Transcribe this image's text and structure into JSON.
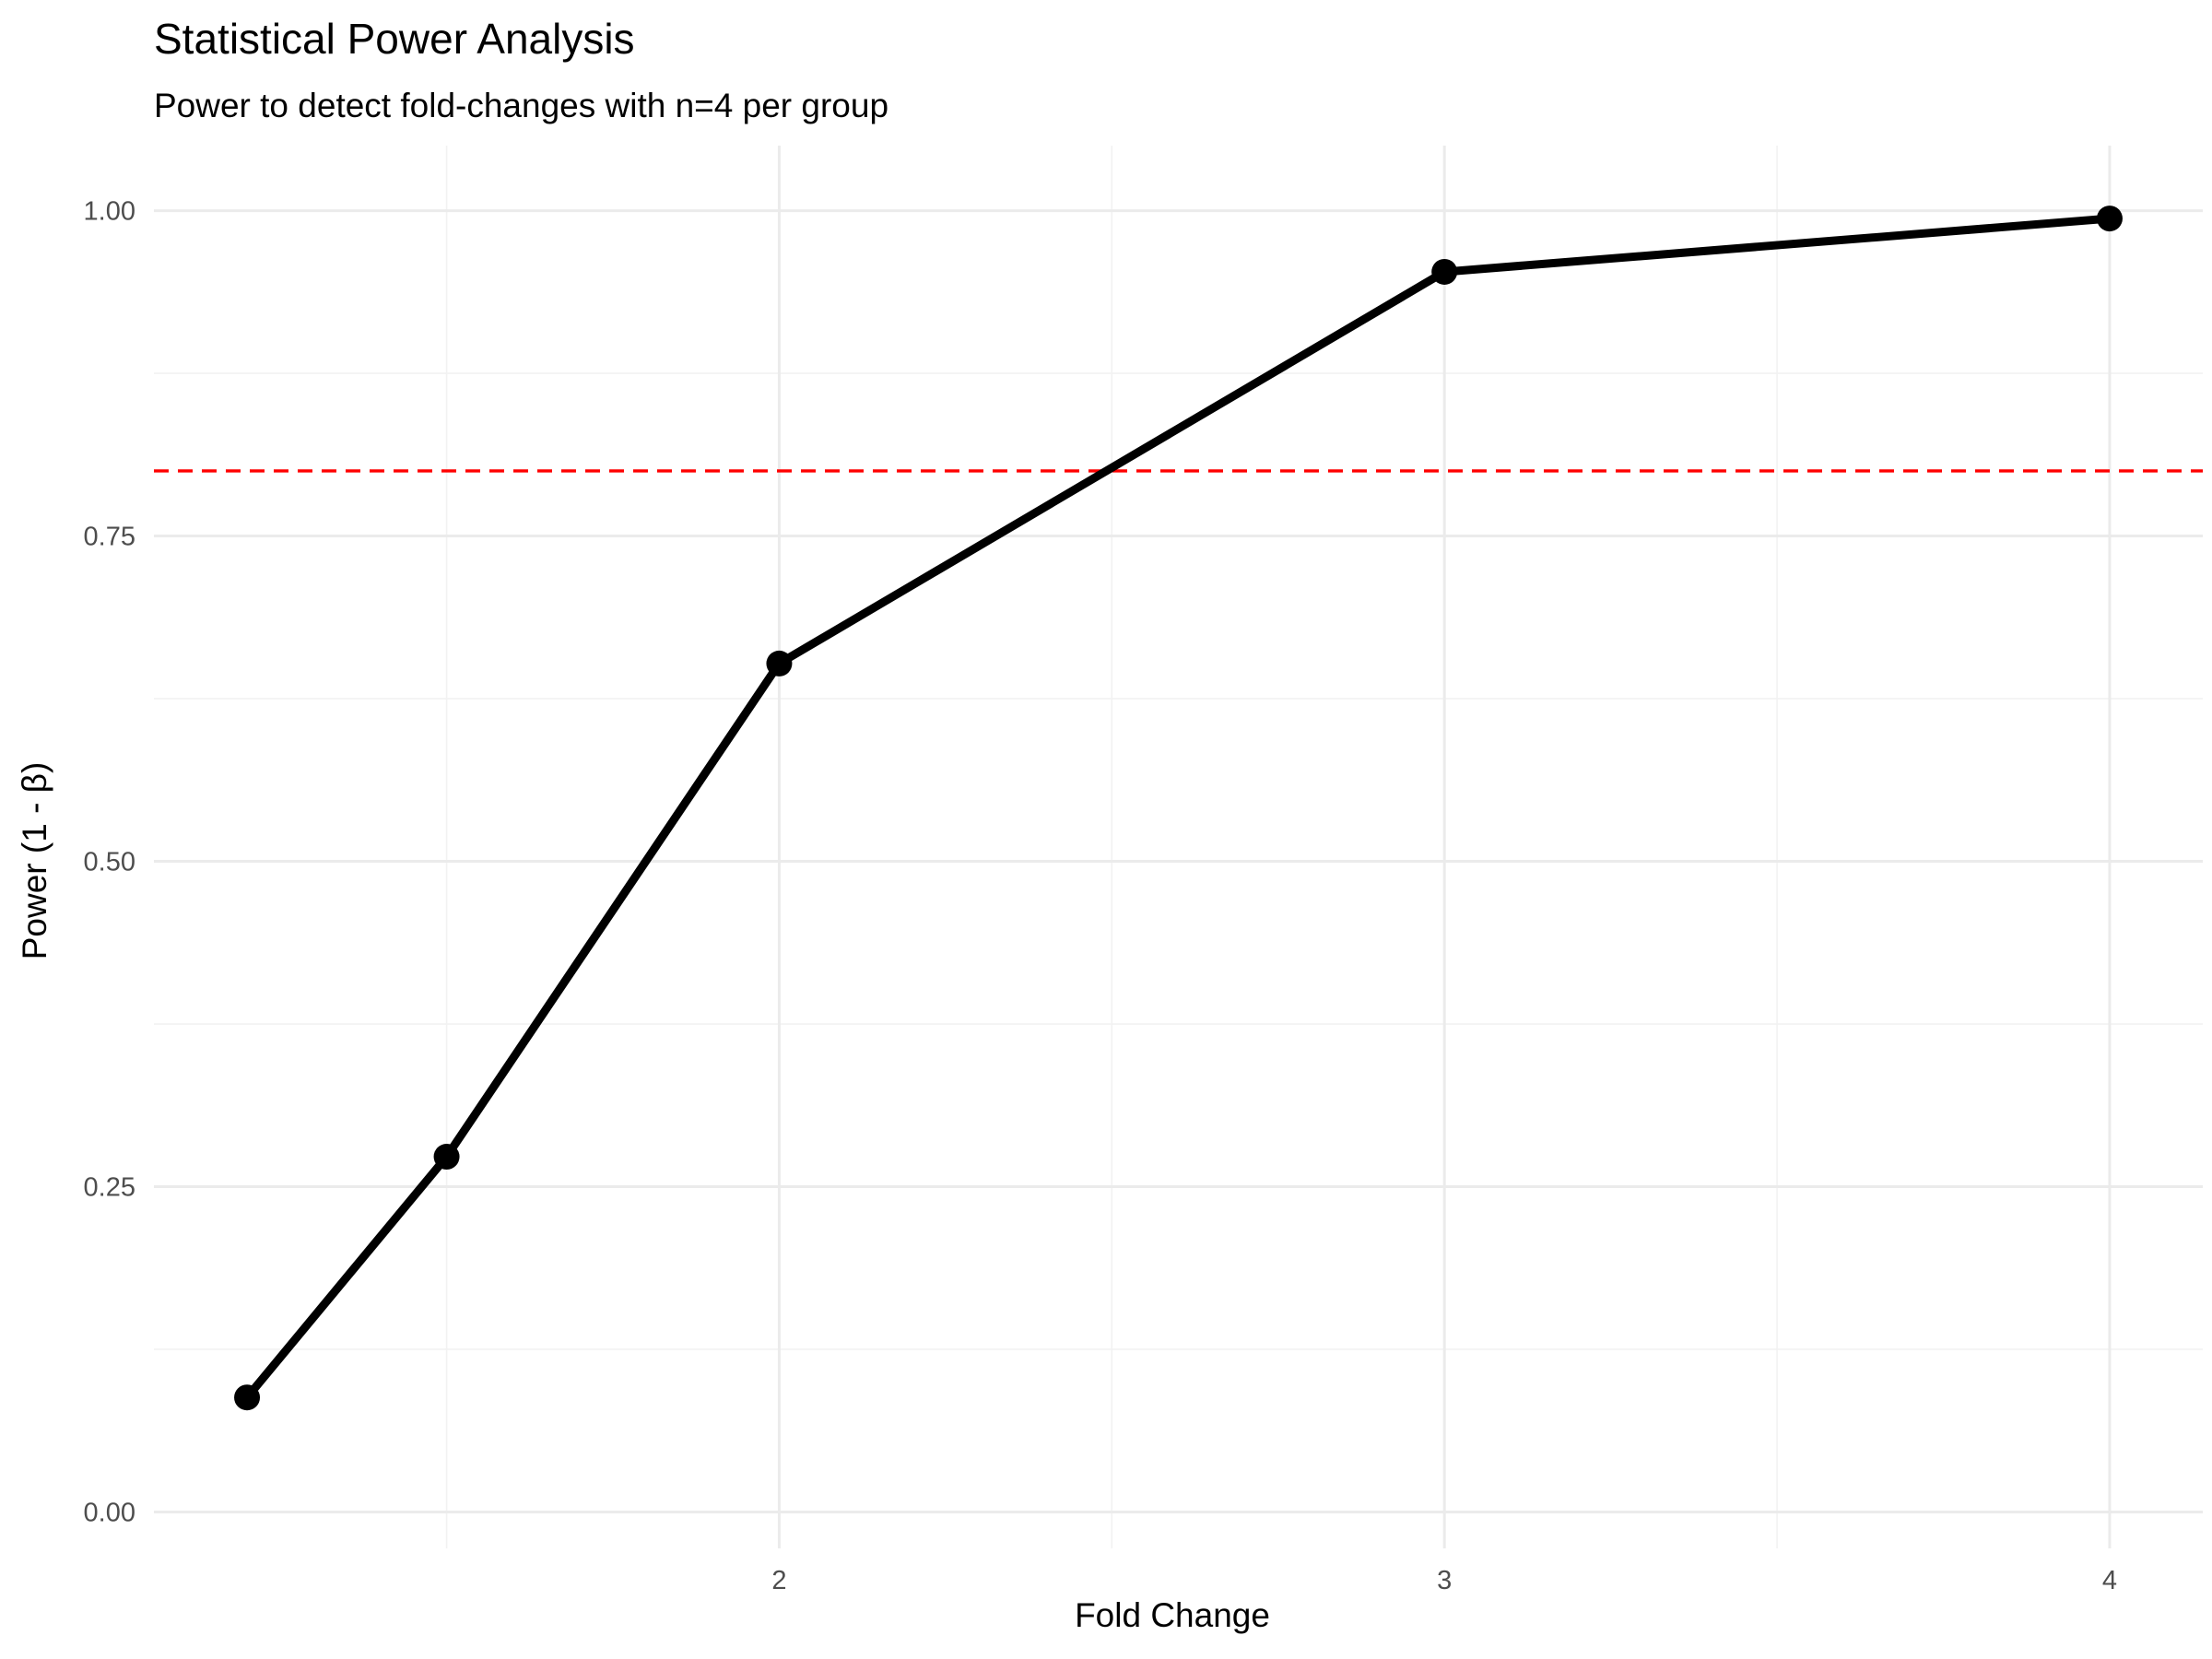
{
  "chart_data": {
    "type": "line",
    "title": "Statistical Power Analysis",
    "subtitle": "Power to detect fold-changes with n=4 per group",
    "xlabel": "Fold Change",
    "ylabel": "Power (1 - β)",
    "x": [
      1.2,
      1.5,
      2,
      3,
      4
    ],
    "series": [
      {
        "values": [
          0.088,
          0.273,
          0.652,
          0.953,
          0.994
        ],
        "color": "#000000"
      }
    ],
    "reference_lines": [
      {
        "axis": "y",
        "value": 0.8,
        "style": "dashed",
        "color": "#ff0000"
      }
    ],
    "x_ticks": [
      2,
      3,
      4
    ],
    "x_tick_labels": [
      "2",
      "3",
      "4"
    ],
    "y_ticks": [
      0,
      0.25,
      0.5,
      0.75,
      1
    ],
    "y_tick_labels": [
      "0.00",
      "0.25",
      "0.50",
      "0.75",
      "1.00"
    ],
    "xlim": [
      1.06,
      4.14
    ],
    "ylim": [
      -0.028,
      1.05
    ],
    "grid": true,
    "legend": "none",
    "colors": {
      "background": "#ffffff",
      "grid_major": "#ebebeb",
      "grid_minor": "#f2f2f2",
      "line": "#000000",
      "reference": "#ff0000"
    }
  }
}
